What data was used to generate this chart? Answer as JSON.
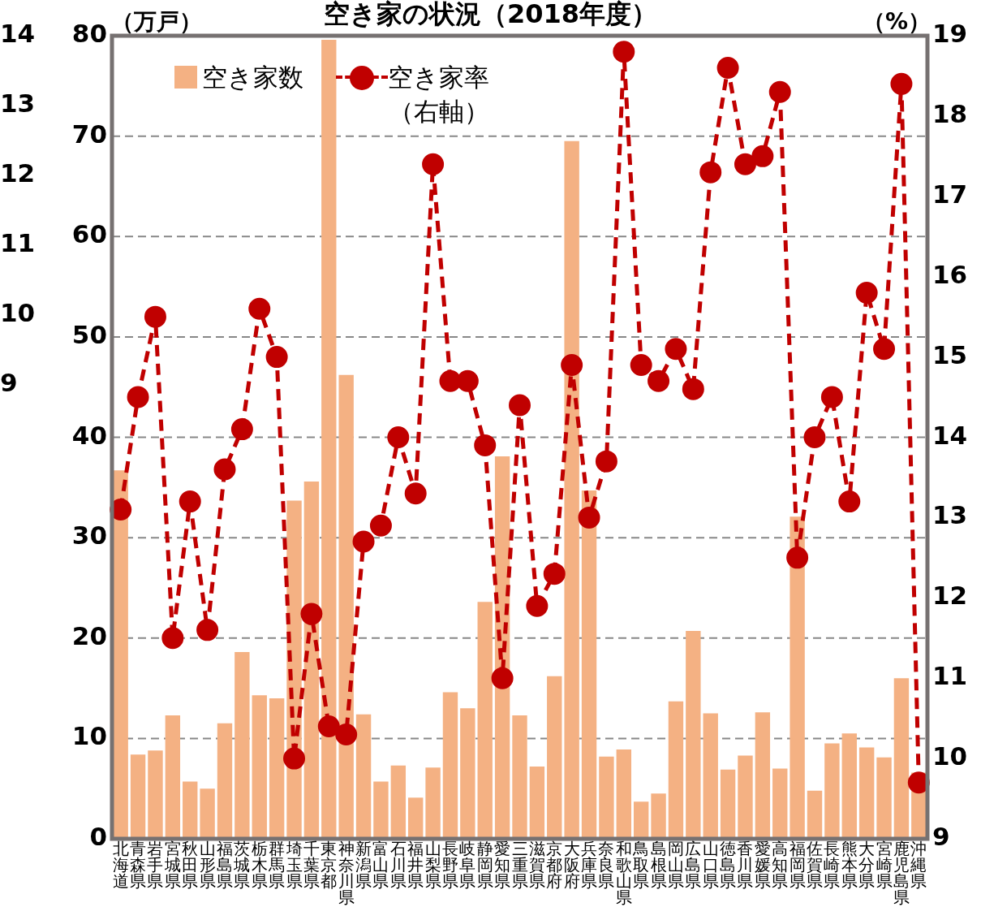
{
  "chart_data": {
    "type": "bar",
    "title": "空き家の状況（2018年度）",
    "ylabel": "（万戸）",
    "y2label": "（%）",
    "categories": [
      "北海道",
      "青森県",
      "岩手県",
      "宮城県",
      "秋田県",
      "山形県",
      "福島県",
      "茨城県",
      "栃木県",
      "群馬県",
      "埼玉県",
      "千葉県",
      "東京都",
      "神奈川県",
      "新潟県",
      "富山県",
      "石川県",
      "福井県",
      "山梨県",
      "長野県",
      "岐阜県",
      "静岡県",
      "愛知県",
      "三重県",
      "滋賀県",
      "京都府",
      "大阪府",
      "兵庫県",
      "奈良県",
      "和歌山県",
      "鳥取県",
      "島根県",
      "岡山県",
      "広島県",
      "山口県",
      "徳島県",
      "香川県",
      "愛媛県",
      "高知県",
      "福岡県",
      "佐賀県",
      "長崎県",
      "熊本県",
      "大分県",
      "宮崎県",
      "鹿児島県",
      "沖縄県"
    ],
    "series": [
      {
        "name": "空き家数",
        "color": "#f4b183",
        "values": [
          36.7,
          8.4,
          8.8,
          12.3,
          5.7,
          5.0,
          11.5,
          18.6,
          14.3,
          14.0,
          33.7,
          35.6,
          79.6,
          46.2,
          12.4,
          5.7,
          7.3,
          4.1,
          7.1,
          14.6,
          13.0,
          23.6,
          38.1,
          12.3,
          7.2,
          16.2,
          69.5,
          34.7,
          8.2,
          8.9,
          3.7,
          4.5,
          13.7,
          20.7,
          12.5,
          6.9,
          8.3,
          12.6,
          7.0,
          32.1,
          4.8,
          9.5,
          10.5,
          9.1,
          8.1,
          16.0,
          6.6
        ]
      },
      {
        "name": "空き家率（右軸）",
        "type": "line",
        "axis": "y2",
        "color": "#c00000",
        "marker": "circle",
        "line_style": "dashed",
        "values": [
          13.1,
          14.5,
          15.5,
          11.5,
          13.2,
          11.6,
          13.6,
          14.1,
          15.6,
          15.0,
          10.0,
          11.8,
          10.4,
          10.3,
          12.7,
          12.9,
          14.0,
          13.3,
          17.4,
          14.7,
          14.7,
          13.9,
          11.0,
          14.4,
          11.9,
          12.3,
          14.9,
          13.0,
          13.7,
          18.8,
          14.9,
          14.7,
          15.1,
          14.6,
          17.3,
          18.6,
          17.4,
          17.5,
          18.3,
          12.5,
          14.0,
          14.5,
          13.2,
          15.8,
          15.1,
          18.4,
          9.7
        ]
      }
    ],
    "ylim": [
      0,
      80
    ],
    "yticks": [
      0,
      10,
      20,
      30,
      40,
      50,
      60,
      70,
      80
    ],
    "y2lim": [
      9,
      19
    ],
    "y2ticks": [
      9,
      10,
      11,
      12,
      13,
      14,
      15,
      16,
      17,
      18,
      19
    ],
    "y3lim": [
      2.5,
      14
    ],
    "y3ticks": [
      9,
      10,
      11,
      12,
      13,
      14
    ],
    "grid": "y",
    "legend": "top left"
  }
}
